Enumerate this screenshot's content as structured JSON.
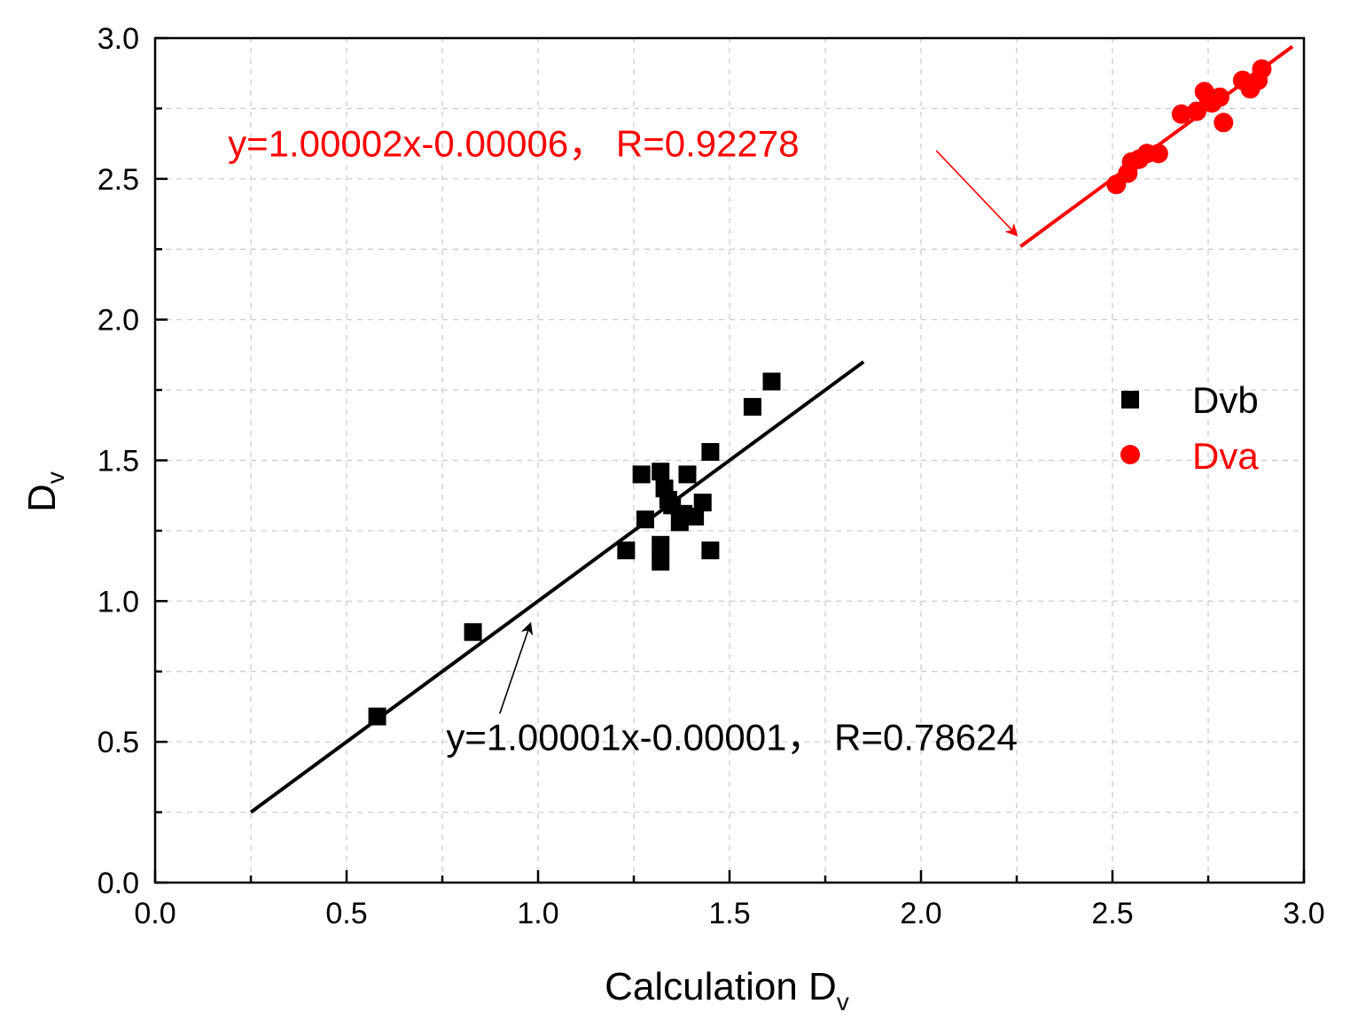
{
  "chart_data": {
    "type": "scatter",
    "title": "",
    "xlabel": "Calculation D",
    "xlabel_sub": "v",
    "ylabel": "D",
    "ylabel_sub": "v",
    "xlim": [
      0,
      3
    ],
    "ylim": [
      0,
      3
    ],
    "x_ticks": [
      0,
      0.5,
      1.0,
      1.5,
      2.0,
      2.5,
      3.0
    ],
    "x_tick_labels": [
      "0.0",
      "0.5",
      "1.0",
      "1.5",
      "2.0",
      "2.5",
      "3.0"
    ],
    "y_ticks": [
      0,
      0.5,
      1.0,
      1.5,
      2.0,
      2.5,
      3.0
    ],
    "y_tick_labels": [
      "0.0",
      "0.5",
      "1.0",
      "1.5",
      "2.0",
      "2.5",
      "3.0"
    ],
    "grid": true,
    "legend_position": "right",
    "series": [
      {
        "name": "Dvb",
        "color": "#000000",
        "marker": "square",
        "x": [
          0.58,
          0.83,
          1.23,
          1.27,
          1.28,
          1.32,
          1.32,
          1.32,
          1.33,
          1.34,
          1.35,
          1.37,
          1.38,
          1.39,
          1.41,
          1.43,
          1.45,
          1.45,
          1.56,
          1.61
        ],
        "y": [
          0.59,
          0.89,
          1.18,
          1.45,
          1.29,
          1.14,
          1.2,
          1.46,
          1.4,
          1.36,
          1.34,
          1.28,
          1.31,
          1.45,
          1.3,
          1.35,
          1.18,
          1.53,
          1.69,
          1.78
        ]
      },
      {
        "name": "Dva",
        "color": "#ff0000",
        "marker": "circle",
        "x": [
          2.51,
          2.54,
          2.55,
          2.57,
          2.59,
          2.62,
          2.68,
          2.72,
          2.74,
          2.75,
          2.76,
          2.78,
          2.79,
          2.84,
          2.86,
          2.88,
          2.89
        ],
        "y": [
          2.48,
          2.52,
          2.56,
          2.57,
          2.59,
          2.59,
          2.73,
          2.74,
          2.81,
          2.79,
          2.77,
          2.79,
          2.7,
          2.85,
          2.82,
          2.85,
          2.89
        ]
      }
    ],
    "fits": [
      {
        "series": "Dvb",
        "color": "#000000",
        "slope": 1.00001,
        "intercept": -1e-05,
        "x_range": [
          0.25,
          1.85
        ],
        "label": "y=1.00001x-0.00001，  R=0.78624",
        "label_anchor": {
          "x": 0.76,
          "y": 0.47
        },
        "arrow_from": {
          "x": 0.9,
          "y": 0.6
        },
        "arrow_to": {
          "x": 0.98,
          "y": 0.92
        }
      },
      {
        "series": "Dva",
        "color": "#ff0000",
        "slope": 1.00002,
        "intercept": -6e-05,
        "x_range": [
          2.26,
          2.97
        ],
        "label": "y=1.00002x-0.00006，  R=0.92278",
        "label_anchor": {
          "x": 0.19,
          "y": 2.58
        },
        "arrow_from": {
          "x": 2.04,
          "y": 2.6
        },
        "arrow_to": {
          "x": 2.25,
          "y": 2.3
        }
      }
    ]
  }
}
